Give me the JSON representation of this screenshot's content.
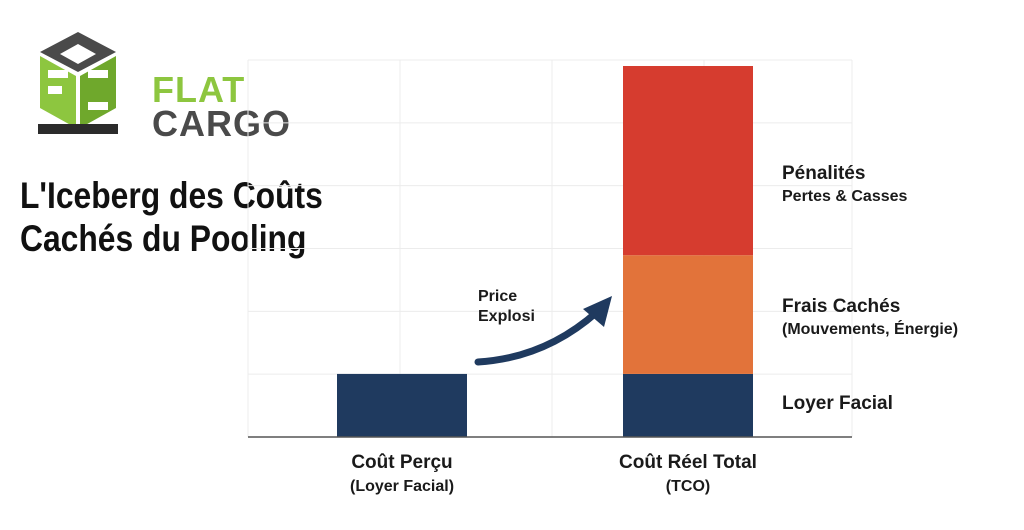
{
  "logo": {
    "line1": "FLAT",
    "line2": "CARGO"
  },
  "title": {
    "line1": "L'Iceberg des Coûts",
    "line2": "Cachés du Pooling"
  },
  "annotation": {
    "line1": "Price",
    "line2": "Explosi"
  },
  "colors": {
    "navy": "#1f3a5f",
    "orange": "#e2733a",
    "red": "#d63c2f",
    "logo_green": "#8dc63f",
    "logo_gray": "#4a4a4a"
  },
  "chart_data": {
    "type": "bar",
    "stacked": true,
    "grid": true,
    "ylim": [
      0,
      100
    ],
    "categories": [
      {
        "name": "Coût Perçu",
        "sub": "(Loyer Facial)"
      },
      {
        "name": "Coût Réel Total",
        "sub": "(TCO)"
      }
    ],
    "series": [
      {
        "name": "Loyer Facial",
        "sub": "",
        "color": "#1f3a5f",
        "values": [
          17,
          17
        ]
      },
      {
        "name": "Frais Cachés",
        "sub": "(Mouvements, Énergie)",
        "color": "#e2733a",
        "values": [
          0,
          32
        ]
      },
      {
        "name": "Pénalités",
        "sub": "Pertes & Casses",
        "color": "#d63c2f",
        "values": [
          0,
          51
        ]
      }
    ]
  }
}
